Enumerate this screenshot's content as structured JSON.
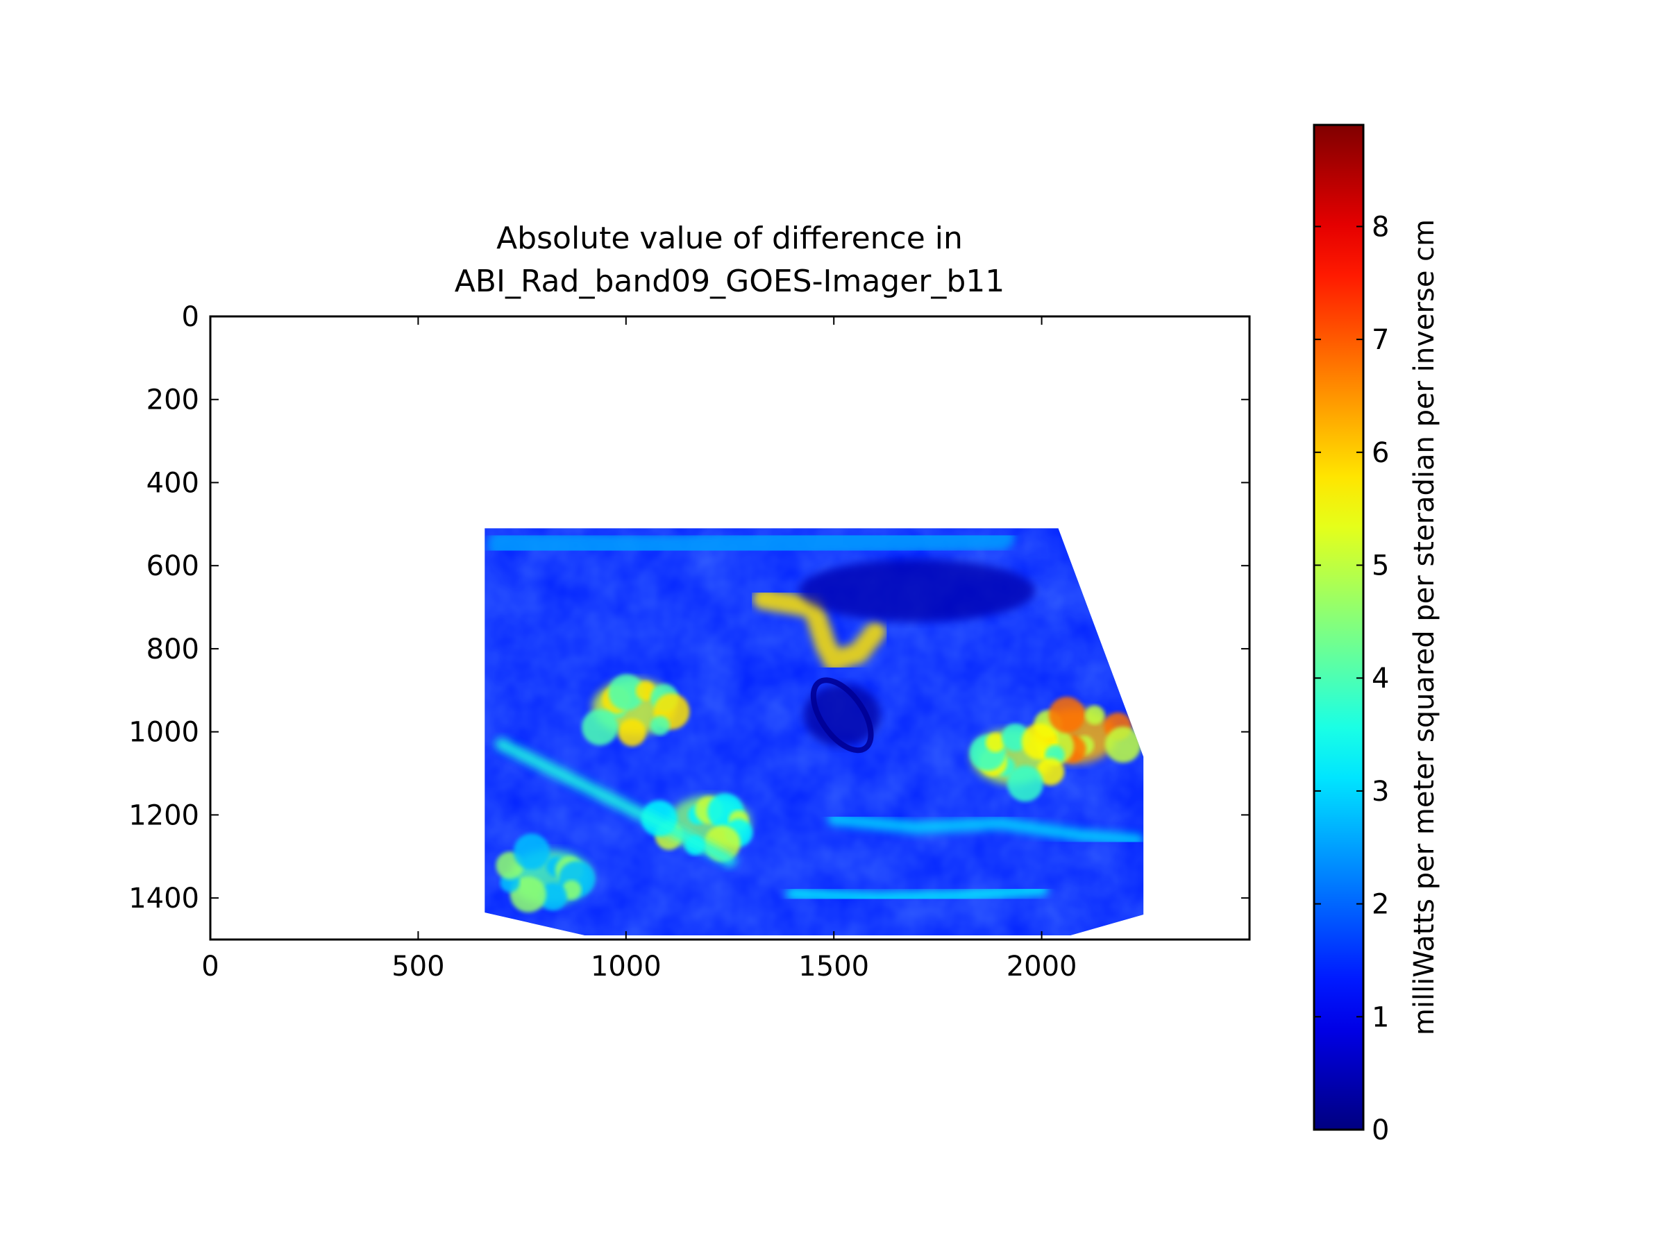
{
  "chart_data": {
    "type": "heatmap",
    "title_lines": [
      "Absolute value of difference in",
      "ABI_Rad_band09_GOES-Imager_b11"
    ],
    "x_ticks": [
      0,
      500,
      1000,
      1500,
      2000
    ],
    "y_ticks": [
      0,
      200,
      400,
      600,
      800,
      1000,
      1200,
      1400
    ],
    "xlim": [
      0,
      2500
    ],
    "ylim": [
      1500,
      0
    ],
    "y_inverted": true,
    "grid": false,
    "colormap": "jet",
    "colorbar": {
      "label": "milliWatts per meter squared per steradian per inverse cm",
      "ticks": [
        0,
        1,
        2,
        3,
        4,
        5,
        6,
        7,
        8
      ],
      "range": [
        0,
        8.9
      ]
    },
    "data_outline": [
      [
        660,
        510
      ],
      [
        2040,
        510
      ],
      [
        2245,
        1060
      ],
      [
        2245,
        1440
      ],
      [
        2070,
        1490
      ],
      [
        900,
        1490
      ],
      [
        660,
        1435
      ]
    ],
    "typical_value": 1.4,
    "features": [
      {
        "kind": "high-band",
        "points": [
          [
            1330,
            680
          ],
          [
            1450,
            700
          ],
          [
            1480,
            790
          ],
          [
            1500,
            830
          ],
          [
            1560,
            810
          ],
          [
            1600,
            760
          ]
        ],
        "value": 5.8
      },
      {
        "kind": "high-patch",
        "center": [
          2080,
          1010
        ],
        "value": 6.2
      },
      {
        "kind": "high-patch",
        "center": [
          1930,
          1060
        ],
        "value": 5.0
      },
      {
        "kind": "high-patch",
        "center": [
          1020,
          940
        ],
        "value": 5.2
      },
      {
        "kind": "high-patch",
        "center": [
          1200,
          1220
        ],
        "value": 4.5
      },
      {
        "kind": "high-patch",
        "center": [
          820,
          1350
        ],
        "value": 4.0
      },
      {
        "kind": "medium-band",
        "points": [
          [
            700,
            1030
          ],
          [
            900,
            1130
          ],
          [
            1100,
            1230
          ],
          [
            1250,
            1310
          ]
        ],
        "value": 3.6
      },
      {
        "kind": "medium-band",
        "points": [
          [
            1500,
            1210
          ],
          [
            1700,
            1230
          ],
          [
            1900,
            1220
          ],
          [
            2100,
            1250
          ],
          [
            2230,
            1260
          ]
        ],
        "value": 3.0
      },
      {
        "kind": "medium-band",
        "points": [
          [
            1400,
            1390
          ],
          [
            1600,
            1400
          ],
          [
            1800,
            1395
          ],
          [
            2000,
            1380
          ]
        ],
        "value": 3.2
      },
      {
        "kind": "low-region",
        "center": [
          1700,
          660
        ],
        "value": 0.4
      },
      {
        "kind": "low-swirl",
        "center": [
          1520,
          960
        ],
        "value": 0.3
      },
      {
        "kind": "light-band",
        "points": [
          [
            700,
            550
          ],
          [
            1100,
            560
          ],
          [
            1500,
            540
          ],
          [
            1900,
            530
          ]
        ],
        "value": 2.5
      }
    ]
  }
}
